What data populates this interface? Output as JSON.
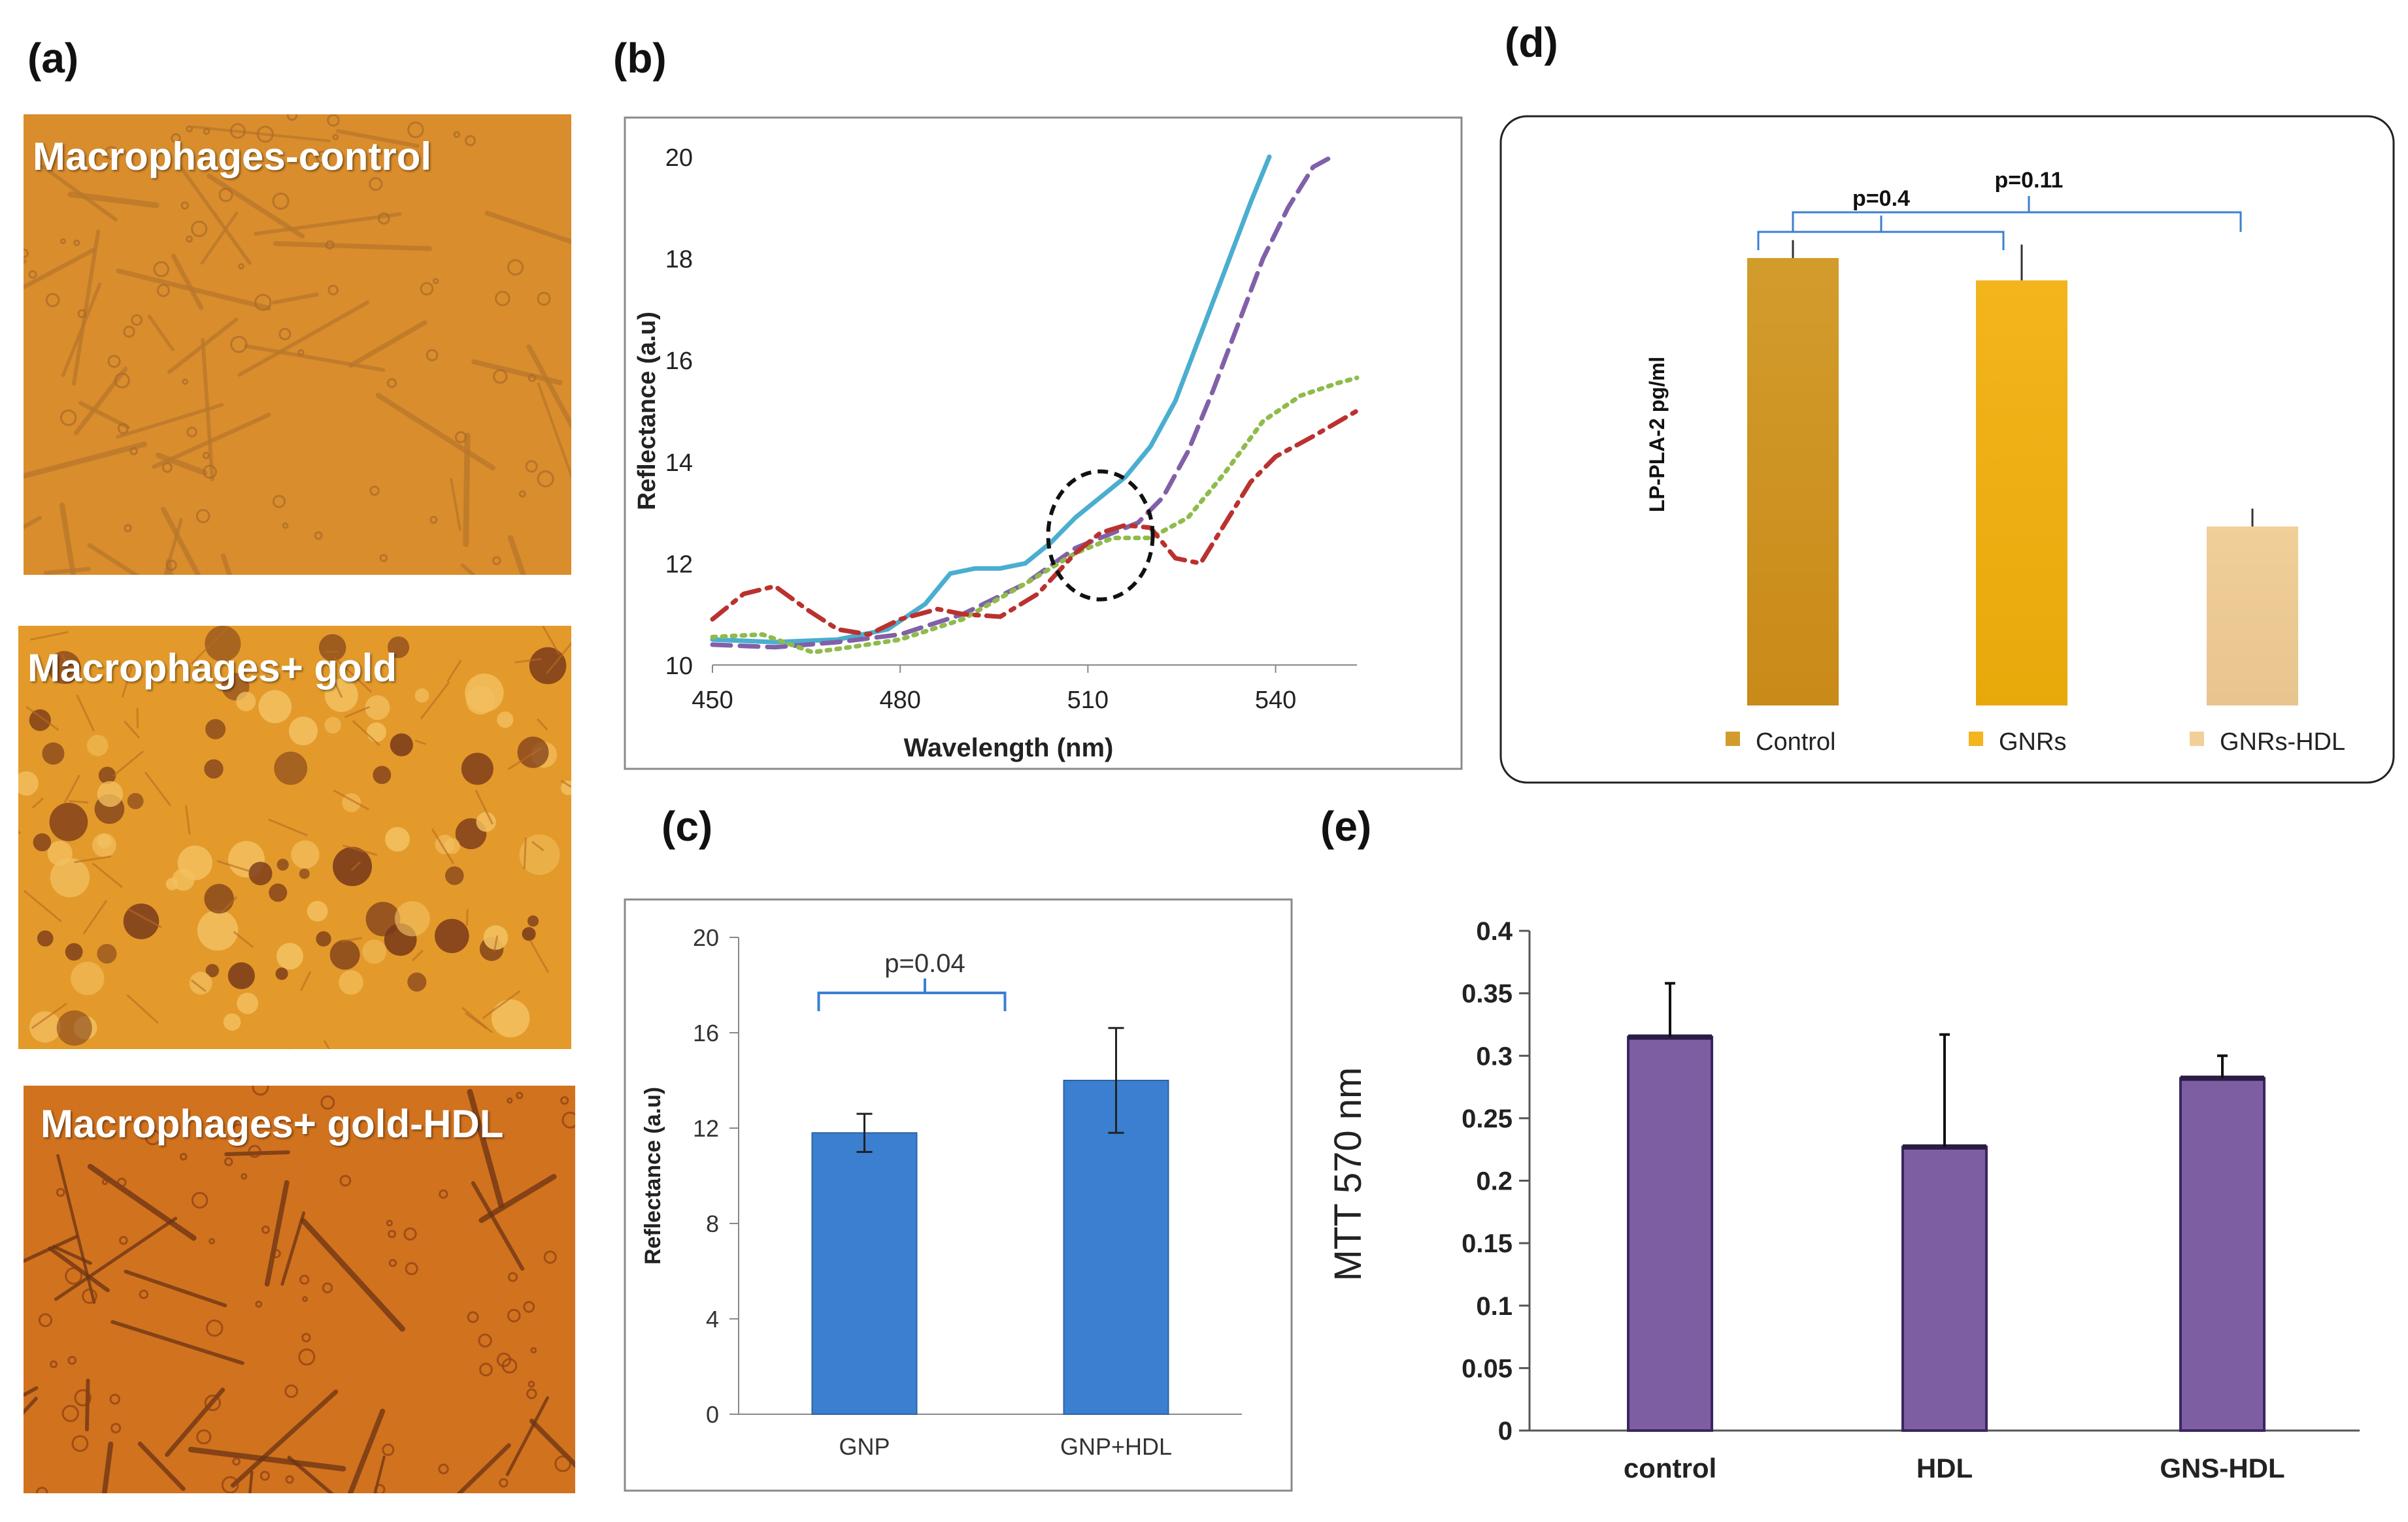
{
  "panel_labels": {
    "a": "(a)",
    "b": "(b)",
    "c": "(c)",
    "d": "(d)",
    "e": "(e)"
  },
  "micrographs": [
    {
      "label": "Macrophages-control",
      "bg_color": "#d98d2c"
    },
    {
      "label": "Macrophages+ gold",
      "bg_color": "#e39a2a"
    },
    {
      "label": "Macrophages+ gold-HDL",
      "bg_color": "#d1721e"
    }
  ],
  "chart_data": [
    {
      "id": "b",
      "type": "line",
      "xlabel": "Wavelength (nm)",
      "ylabel": "Reflectance (a.u)",
      "xlim": [
        450,
        553
      ],
      "ylim": [
        10,
        20
      ],
      "xticks": [
        450,
        480,
        510,
        540
      ],
      "yticks": [
        10,
        12,
        14,
        16,
        18,
        20
      ],
      "annotation": "dashed ellipse around 512 nm, ~12.5",
      "series": [
        {
          "name": "solid teal",
          "color": "#4aaed0",
          "style": "solid",
          "x": [
            450,
            460,
            470,
            478,
            484,
            488,
            492,
            496,
            500,
            504,
            508,
            512,
            516,
            520,
            524,
            528,
            532,
            536,
            539
          ],
          "y": [
            10.5,
            10.45,
            10.5,
            10.7,
            11.2,
            11.8,
            11.9,
            11.9,
            12.0,
            12.4,
            12.9,
            13.3,
            13.7,
            14.3,
            15.2,
            16.5,
            17.8,
            19.1,
            20.0
          ]
        },
        {
          "name": "dashed purple",
          "color": "#8160a8",
          "style": "dashed",
          "x": [
            450,
            460,
            470,
            480,
            490,
            500,
            508,
            514,
            518,
            522,
            526,
            530,
            534,
            538,
            542,
            546,
            549
          ],
          "y": [
            10.4,
            10.35,
            10.45,
            10.6,
            11.0,
            11.6,
            12.3,
            12.6,
            12.8,
            13.3,
            14.2,
            15.4,
            16.7,
            18.0,
            19.0,
            19.8,
            20.0
          ]
        },
        {
          "name": "dotted green",
          "color": "#8fbb4c",
          "style": "dotted",
          "x": [
            450,
            458,
            466,
            472,
            480,
            490,
            500,
            508,
            514,
            520,
            526,
            532,
            538,
            544,
            550,
            553
          ],
          "y": [
            10.55,
            10.6,
            10.25,
            10.35,
            10.5,
            10.9,
            11.6,
            12.2,
            12.5,
            12.5,
            12.9,
            13.8,
            14.8,
            15.3,
            15.55,
            15.65
          ]
        },
        {
          "name": "dash-dot red",
          "color": "#b9322f",
          "style": "dashdot",
          "x": [
            450,
            455,
            460,
            465,
            470,
            475,
            480,
            486,
            490,
            496,
            502,
            508,
            512,
            516,
            520,
            524,
            528,
            532,
            536,
            540,
            546,
            553
          ],
          "y": [
            10.9,
            11.4,
            11.55,
            11.1,
            10.7,
            10.6,
            10.9,
            11.1,
            11.0,
            10.95,
            11.4,
            12.2,
            12.6,
            12.75,
            12.7,
            12.1,
            12.0,
            12.8,
            13.6,
            14.1,
            14.5,
            15.0
          ]
        }
      ]
    },
    {
      "id": "c",
      "type": "bar",
      "categories": [
        "GNP",
        "GNP+HDL"
      ],
      "values": [
        11.8,
        14.0
      ],
      "errors": [
        0.8,
        2.2
      ],
      "ylabel": "Reflectance (a.u)",
      "ylim": [
        0,
        20
      ],
      "yticks": [
        0,
        4,
        8,
        12,
        16,
        20
      ],
      "bar_color": "#3b7fd0",
      "annotation": "p=0.04"
    },
    {
      "id": "d",
      "type": "bar",
      "categories": [
        "Control",
        "GNRs",
        "GNRs-HDL"
      ],
      "values": [
        1.0,
        0.95,
        0.4
      ],
      "errors": [
        0.04,
        0.08,
        0.04
      ],
      "ylabel": "LP-PLA-2 pg/ml",
      "colors": [
        "#d29c2c",
        "#f3b41d",
        "#f1cf98"
      ],
      "legend": [
        "Control",
        "GNRs",
        "GNRs-HDL"
      ],
      "annotations": [
        "p=0.4",
        "p=0.11"
      ]
    },
    {
      "id": "e",
      "type": "bar",
      "categories": [
        "control",
        "HDL",
        "GNS-HDL"
      ],
      "values": [
        0.315,
        0.227,
        0.282
      ],
      "errors": [
        0.043,
        0.09,
        0.018
      ],
      "ylabel": "MTT 570 nm",
      "ylim": [
        0,
        0.4
      ],
      "yticks": [
        "0",
        "0.05",
        "0.1",
        "0.15",
        "0.2",
        "0.25",
        "0.3",
        "0.35",
        "0.4"
      ],
      "bar_color": "#7d5ea3"
    }
  ]
}
